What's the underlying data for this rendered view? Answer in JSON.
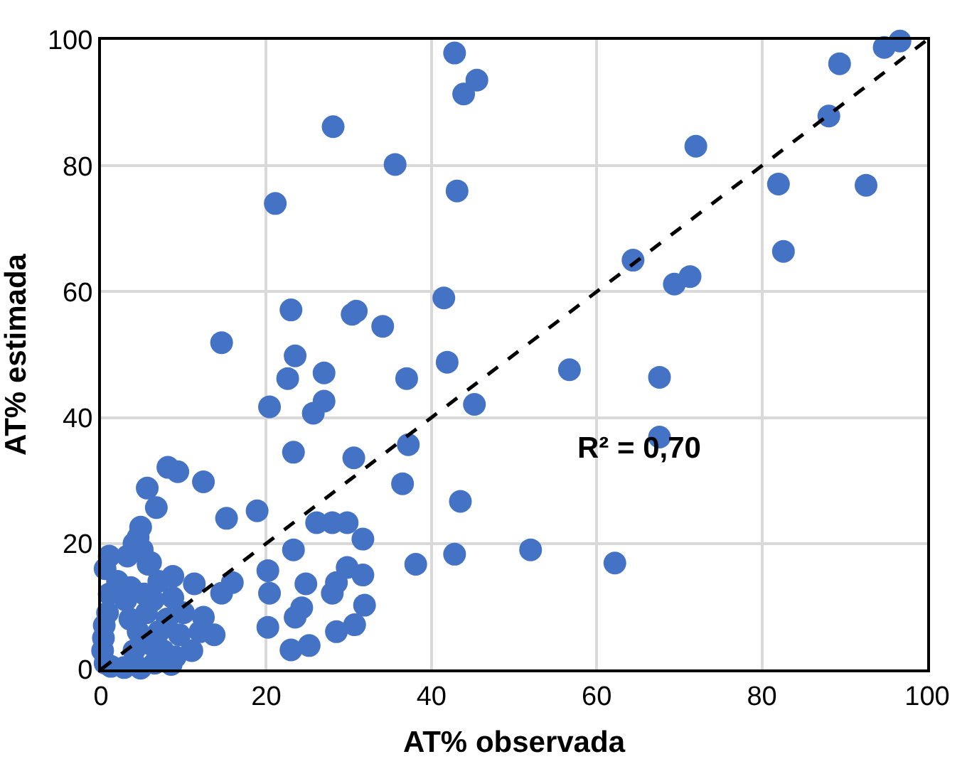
{
  "chart_data": {
    "type": "scatter",
    "xlabel": "AT% observada",
    "ylabel": "AT% estimada",
    "annotations": [
      "R² = 0,70"
    ],
    "xlim": [
      0,
      100
    ],
    "ylim": [
      0,
      100
    ],
    "xticks": [
      0,
      20,
      40,
      60,
      80,
      100
    ],
    "yticks": [
      0,
      20,
      40,
      60,
      80,
      100
    ],
    "grid": true,
    "marker": "circle",
    "series": [
      {
        "color": "#4472c4",
        "x": [
          42.8,
          45.5,
          43.9,
          35.6,
          43.1,
          72,
          89.4,
          94.8,
          96.7,
          88.1,
          82,
          92.6,
          82.6,
          64.4,
          69.4,
          71.3,
          41.5,
          34.1,
          41.9,
          37,
          45.2,
          56.7,
          67.6,
          67.6,
          37.2,
          36.5,
          43.5,
          38.1,
          42.8,
          52,
          62.2,
          28.1,
          21.1,
          23,
          30.4,
          30.9,
          14.6,
          23.5,
          27,
          22.6,
          20.4,
          25.7,
          27,
          23.3,
          30.6,
          8.1,
          9.3,
          5.6,
          12.4,
          6.7,
          15.2,
          18.9,
          4.8,
          26.1,
          28,
          29.8,
          31.7,
          23.3,
          5.7,
          8.7,
          11.3,
          20.2,
          20.4,
          24.8,
          15.9,
          14.6,
          29.8,
          31.7,
          28,
          28.5,
          31.9,
          24.3,
          23.5,
          20.2,
          23,
          25.2,
          28.5,
          30.7,
          13.7,
          10,
          8.7,
          12.4,
          0.5,
          0.3,
          0.8,
          1,
          3.5,
          4,
          2,
          4.5,
          0.5,
          3,
          5.5,
          6,
          6.5,
          7,
          1.2,
          2.8,
          0.2,
          3.2,
          4,
          4.5,
          5,
          6,
          7.5,
          8,
          9,
          5.2,
          6.3,
          7,
          1,
          3.6,
          0.4,
          4.8,
          8.5,
          9.5,
          11,
          12
        ],
        "values": [
          97.9,
          93.6,
          91.4,
          80.2,
          76,
          83.1,
          96.2,
          98.8,
          99.8,
          87.9,
          77.1,
          76.9,
          66.4,
          65,
          61.2,
          62.4,
          59,
          54.5,
          48.8,
          46.2,
          42.1,
          47.6,
          46.4,
          36.9,
          35.7,
          29.5,
          26.7,
          16.7,
          18.3,
          19,
          16.9,
          86.2,
          74,
          57.1,
          56.4,
          56.9,
          51.9,
          49.8,
          47.1,
          46.2,
          41.7,
          40.7,
          42.6,
          34.5,
          33.6,
          32.1,
          31.4,
          28.8,
          29.8,
          25.7,
          24,
          25.2,
          22.6,
          23.3,
          23.3,
          23.3,
          20.7,
          19,
          16.7,
          14.8,
          13.6,
          15.7,
          12.1,
          13.6,
          13.8,
          12.1,
          16.2,
          15,
          12.1,
          13.8,
          10.2,
          9.8,
          8.3,
          6.7,
          3.1,
          3.8,
          6,
          7.1,
          5.5,
          9,
          11.4,
          8.3,
          1,
          5,
          9,
          12,
          8,
          3,
          14,
          6,
          16,
          11,
          9,
          4,
          1,
          6,
          0.5,
          0.3,
          3,
          18,
          20,
          21,
          19,
          17,
          3,
          8,
          2,
          12,
          11,
          14,
          18,
          13,
          7,
          0.2,
          0.8,
          5.5,
          3,
          6
        ]
      },
      {
        "color": "#000000",
        "type": "line",
        "line_style": "dashed",
        "marker": "none",
        "x": [
          0,
          100
        ],
        "values": [
          0,
          100
        ]
      }
    ]
  }
}
